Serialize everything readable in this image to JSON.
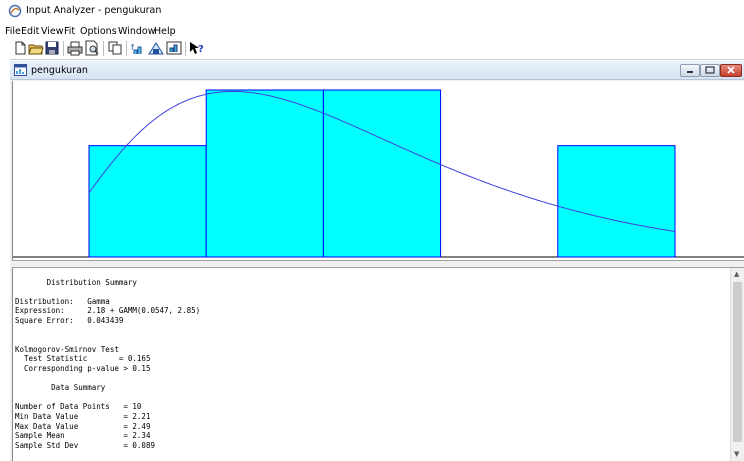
{
  "window": {
    "title": "Input Analyzer - pengukuran"
  },
  "menu": [
    "File",
    "Edit",
    "View",
    "Fit",
    "Options",
    "Window",
    "Help"
  ],
  "toolbar": [
    "new-icon",
    "open-icon",
    "save-icon",
    "print-icon",
    "print-preview-icon",
    "copy-icon",
    "fit-icon",
    "histogram-icon",
    "chart-icon",
    "help-icon"
  ],
  "child_window": {
    "title": "pengukuran"
  },
  "chart_data": {
    "type": "bar",
    "title": "",
    "bins": [
      {
        "from": 2.21,
        "to": 2.268,
        "height": 2
      },
      {
        "from": 2.268,
        "to": 2.326,
        "height": 3
      },
      {
        "from": 2.326,
        "to": 2.384,
        "height": 3
      },
      {
        "from": 2.384,
        "to": 2.442,
        "height": 0
      },
      {
        "from": 2.442,
        "to": 2.5,
        "height": 2
      }
    ],
    "fit_curve": {
      "distribution": "Gamma",
      "expression": "2.18 + GAMM(0.0547, 2.85)"
    },
    "colors": {
      "bar_fill": "#00ffff",
      "bar_border": "#0000ff",
      "curve": "#4040e0"
    }
  },
  "report": {
    "lines": [
      "",
      "       Distribution Summary",
      "",
      "Distribution:   Gamma",
      "Expression:     2.18 + GAMM(0.0547, 2.85)",
      "Square Error:   0.043439",
      "",
      "",
      "Kolmogorov-Smirnov Test",
      "  Test Statistic       = 0.165",
      "  Corresponding p-value > 0.15",
      "",
      "        Data Summary",
      "",
      "Number of Data Points   = 10",
      "Min Data Value          = 2.21",
      "Max Data Value          = 2.49",
      "Sample Mean             = 2.34",
      "Sample Std Dev          = 0.089"
    ]
  }
}
